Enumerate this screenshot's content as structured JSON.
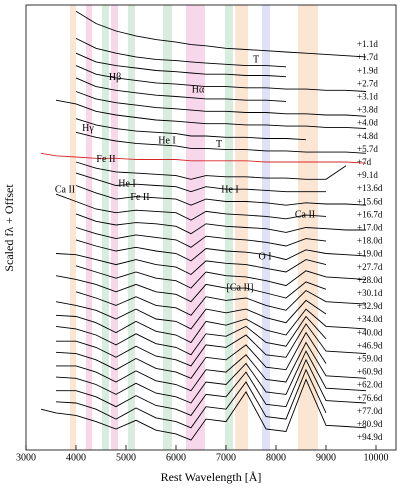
{
  "chart_data": {
    "type": "line",
    "xlabel": "Rest Wavelength [Å]",
    "ylabel": "Scaled fλ + Offset",
    "xlim": [
      3000,
      10400
    ],
    "ylim": [
      -1.5,
      34.5
    ],
    "xticks": [
      3000,
      4000,
      5000,
      6000,
      7000,
      8000,
      9000,
      10000
    ],
    "x": [
      3300,
      3600,
      4000,
      4400,
      4800,
      5200,
      5600,
      6000,
      6300,
      6600,
      7000,
      7400,
      7800,
      8200,
      8600,
      9000,
      9400,
      9800
    ],
    "series": [
      {
        "name": "+1.1d",
        "color": "#000000",
        "values": [
          null,
          null,
          34.0,
          33.0,
          32.4,
          32.0,
          31.7,
          31.5,
          31.3,
          31.2,
          31.0,
          30.9,
          30.8,
          30.7,
          30.6,
          30.5,
          30.4,
          30.3
        ]
      },
      {
        "name": "+1.7d",
        "color": "#000000",
        "values": [
          null,
          null,
          31.8,
          31.0,
          30.6,
          30.3,
          30.1,
          30.0,
          29.9,
          29.8,
          29.7,
          29.6,
          29.6,
          29.5,
          null,
          null,
          null,
          null
        ]
      },
      {
        "name": "+1.9d",
        "color": "#000000",
        "values": [
          null,
          null,
          30.6,
          29.9,
          29.6,
          29.4,
          29.2,
          29.1,
          29.0,
          28.9,
          28.9,
          28.8,
          28.8,
          28.7,
          null,
          null,
          null,
          null
        ]
      },
      {
        "name": "+2.7d",
        "color": "#000000",
        "values": [
          null,
          null,
          29.6,
          28.9,
          28.6,
          28.4,
          28.2,
          28.1,
          28.0,
          27.9,
          27.9,
          27.8,
          27.8,
          27.7,
          27.7,
          27.6,
          27.6,
          27.5
        ]
      },
      {
        "name": "+3.1d",
        "color": "#000000",
        "values": [
          null,
          null,
          28.6,
          27.9,
          27.6,
          27.4,
          27.2,
          27.1,
          27.0,
          26.9,
          26.9,
          26.8,
          26.8,
          26.7,
          null,
          null,
          null,
          null
        ]
      },
      {
        "name": "+3.8d",
        "color": "#000000",
        "values": [
          null,
          null,
          27.5,
          26.9,
          26.6,
          26.4,
          26.2,
          26.1,
          26.0,
          25.9,
          25.9,
          25.8,
          25.8,
          25.7,
          25.7,
          25.6,
          25.6,
          25.5
        ]
      },
      {
        "name": "+4.0d",
        "color": "#000000",
        "values": [
          null,
          26.8,
          26.5,
          25.9,
          25.6,
          25.4,
          25.2,
          25.1,
          25.0,
          24.9,
          24.9,
          24.8,
          24.8,
          24.7,
          24.7,
          24.6,
          24.6,
          24.5
        ]
      },
      {
        "name": "+4.8d",
        "color": "#000000",
        "values": [
          null,
          null,
          25.3,
          24.8,
          24.5,
          24.3,
          24.2,
          24.1,
          23.9,
          23.9,
          23.8,
          23.8,
          23.7,
          23.7,
          23.6,
          null,
          null,
          null
        ]
      },
      {
        "name": "+5.7d",
        "color": "#000000",
        "values": [
          null,
          null,
          24.2,
          23.8,
          23.5,
          23.3,
          23.2,
          23.1,
          22.9,
          22.9,
          22.8,
          22.8,
          22.7,
          22.7,
          22.6,
          22.6,
          22.6,
          22.5
        ]
      },
      {
        "name": "+7d",
        "color": "#d62728",
        "values": [
          22.5,
          22.3,
          22.2,
          22.1,
          22.1,
          22.0,
          22.0,
          22.0,
          21.9,
          21.9,
          21.9,
          21.9,
          21.8,
          21.8,
          21.8,
          21.8,
          21.8,
          21.7
        ]
      },
      {
        "name": "+9.1d",
        "color": "#000000",
        "values": [
          null,
          null,
          21.8,
          21.3,
          21.0,
          20.9,
          20.8,
          20.7,
          20.4,
          20.7,
          20.6,
          20.6,
          20.5,
          20.5,
          20.4,
          20.4,
          21.5,
          null
        ]
      },
      {
        "name": "+13.6d",
        "color": "#000000",
        "values": [
          null,
          null,
          20.9,
          20.4,
          19.9,
          20.0,
          19.9,
          19.8,
          19.4,
          19.8,
          19.6,
          19.6,
          19.5,
          19.4,
          19.4,
          19.4,
          null,
          null
        ]
      },
      {
        "name": "+15.6d",
        "color": "#000000",
        "values": [
          null,
          null,
          19.9,
          19.3,
          18.8,
          19.0,
          18.9,
          18.8,
          18.3,
          18.8,
          18.6,
          18.6,
          18.5,
          18.3,
          18.5,
          18.4,
          18.4,
          18.3
        ]
      },
      {
        "name": "+16.7d",
        "color": "#000000",
        "values": [
          null,
          19.2,
          18.6,
          18.0,
          17.7,
          17.9,
          17.8,
          17.7,
          17.1,
          17.8,
          17.6,
          17.5,
          17.4,
          17.2,
          17.5,
          17.4,
          null,
          null
        ]
      },
      {
        "name": "+17.0d",
        "color": "#000000",
        "values": [
          null,
          null,
          17.6,
          17.0,
          16.7,
          16.9,
          16.8,
          16.6,
          16.0,
          16.8,
          16.6,
          16.5,
          16.4,
          16.1,
          16.5,
          16.4,
          16.3,
          16.3
        ]
      },
      {
        "name": "+18.0d",
        "color": "#000000",
        "values": [
          null,
          null,
          16.5,
          16.0,
          15.6,
          15.9,
          15.7,
          15.5,
          14.9,
          15.8,
          15.6,
          15.5,
          15.3,
          15.0,
          15.6,
          15.4,
          null,
          null
        ]
      },
      {
        "name": "+19.0d",
        "color": "#000000",
        "values": [
          null,
          null,
          15.5,
          15.0,
          14.6,
          14.9,
          14.6,
          14.4,
          13.8,
          14.8,
          14.6,
          14.5,
          14.3,
          13.9,
          14.7,
          14.4,
          14.3,
          14.2
        ]
      },
      {
        "name": "+27.7d",
        "color": "#000000",
        "values": [
          null,
          14.4,
          14.3,
          13.9,
          13.5,
          13.9,
          13.5,
          13.3,
          12.7,
          13.8,
          13.6,
          13.5,
          13.2,
          12.9,
          13.9,
          13.5,
          null,
          null
        ]
      },
      {
        "name": "+28.0d",
        "color": "#000000",
        "values": [
          null,
          null,
          13.4,
          12.9,
          12.4,
          12.9,
          12.4,
          12.2,
          11.6,
          12.9,
          12.6,
          12.5,
          12.2,
          11.8,
          13.0,
          12.5,
          12.4,
          12.3
        ]
      },
      {
        "name": "+30.1d",
        "color": "#000000",
        "values": [
          null,
          12.6,
          12.3,
          11.9,
          11.3,
          11.9,
          11.3,
          11.1,
          10.5,
          11.9,
          11.6,
          11.6,
          11.2,
          10.8,
          12.1,
          11.5,
          null,
          null
        ]
      },
      {
        "name": "+32.9d",
        "color": "#000000",
        "values": [
          null,
          null,
          11.3,
          10.8,
          10.2,
          10.9,
          10.2,
          10.0,
          9.4,
          10.9,
          10.6,
          10.8,
          10.2,
          9.8,
          11.4,
          10.5,
          10.4,
          10.3
        ]
      },
      {
        "name": "+34.0d",
        "color": "#000000",
        "values": [
          null,
          10.5,
          10.2,
          9.8,
          9.1,
          9.9,
          9.1,
          8.9,
          8.3,
          9.9,
          9.6,
          9.9,
          9.2,
          8.8,
          10.6,
          9.5,
          null,
          null
        ]
      },
      {
        "name": "+40.0d",
        "color": "#000000",
        "values": [
          null,
          9.4,
          9.3,
          8.8,
          8.0,
          8.9,
          8.1,
          7.8,
          7.2,
          8.9,
          8.6,
          9.1,
          8.2,
          7.8,
          9.9,
          8.5,
          8.4,
          8.3
        ]
      },
      {
        "name": "+46.9d",
        "color": "#000000",
        "values": [
          null,
          8.5,
          8.3,
          7.8,
          7.0,
          7.9,
          7.1,
          6.8,
          6.2,
          7.9,
          7.7,
          8.5,
          7.2,
          6.9,
          9.3,
          7.5,
          null,
          null
        ]
      },
      {
        "name": "+59.0d",
        "color": "#000000",
        "values": [
          null,
          7.3,
          7.3,
          6.8,
          6.0,
          6.9,
          6.1,
          5.8,
          5.3,
          7.0,
          6.8,
          7.8,
          6.2,
          6.0,
          8.7,
          6.5,
          6.4,
          6.3
        ]
      },
      {
        "name": "+60.9d",
        "color": "#000000",
        "values": [
          null,
          6.4,
          6.3,
          5.8,
          5.0,
          5.9,
          5.1,
          4.8,
          4.3,
          6.0,
          5.8,
          7.0,
          5.2,
          5.0,
          8.0,
          5.5,
          null,
          null
        ]
      },
      {
        "name": "+62.0d",
        "color": "#000000",
        "values": [
          null,
          5.3,
          5.3,
          4.8,
          4.0,
          4.9,
          4.1,
          3.8,
          3.3,
          5.0,
          4.8,
          6.2,
          4.2,
          4.0,
          7.2,
          4.5,
          4.4,
          4.3
        ]
      },
      {
        "name": "+76.6d",
        "color": "#000000",
        "values": [
          null,
          4.4,
          4.3,
          3.8,
          3.0,
          3.9,
          3.1,
          2.8,
          2.3,
          4.0,
          3.8,
          5.5,
          3.2,
          3.0,
          6.5,
          3.5,
          3.4,
          3.3
        ]
      },
      {
        "name": "+77.0d",
        "color": "#000000",
        "values": [
          null,
          3.3,
          3.3,
          2.8,
          2.0,
          2.9,
          2.1,
          1.8,
          1.3,
          3.0,
          2.8,
          4.8,
          2.2,
          2.0,
          5.8,
          2.5,
          2.4,
          2.3
        ]
      },
      {
        "name": "+80.9d",
        "color": "#000000",
        "values": [
          null,
          2.4,
          2.3,
          1.8,
          1.0,
          1.9,
          1.1,
          0.8,
          0.3,
          2.0,
          1.8,
          4.0,
          1.2,
          1.0,
          5.0,
          1.5,
          null,
          null
        ]
      },
      {
        "name": "+94.9d",
        "color": "#000000",
        "values": [
          1.8,
          1.5,
          1.3,
          0.8,
          0.2,
          0.9,
          0.1,
          -0.2,
          -0.7,
          1.0,
          0.8,
          3.2,
          0.2,
          0.0,
          4.2,
          0.5,
          0.4,
          0.3
        ]
      }
    ],
    "regions": [
      {
        "x0": 3880,
        "x1": 4000,
        "color": "#f7d2b0"
      },
      {
        "x0": 4200,
        "x1": 4320,
        "color": "#f4b6d8"
      },
      {
        "x0": 4520,
        "x1": 4660,
        "color": "#b9dfc4"
      },
      {
        "x0": 4700,
        "x1": 4840,
        "color": "#f4b6d8"
      },
      {
        "x0": 5040,
        "x1": 5180,
        "color": "#b9dfc4"
      },
      {
        "x0": 5740,
        "x1": 5920,
        "color": "#b9dfc4"
      },
      {
        "x0": 6200,
        "x1": 6580,
        "color": "#f4b6d8"
      },
      {
        "x0": 6980,
        "x1": 7140,
        "color": "#b9dfc4"
      },
      {
        "x0": 7180,
        "x1": 7440,
        "color": "#f7d2b0"
      },
      {
        "x0": 7720,
        "x1": 7880,
        "color": "#c4c8f2"
      },
      {
        "x0": 8440,
        "x1": 8840,
        "color": "#f7d2b0"
      }
    ],
    "annotations": [
      {
        "text": "T",
        "x": 7600,
        "y": 30.05,
        "color": "#000000"
      },
      {
        "text": "Hβ",
        "x": 4780,
        "y": 28.6,
        "color": "#c0389a"
      },
      {
        "text": "Hα",
        "x": 6440,
        "y": 27.6,
        "color": "#c0389a"
      },
      {
        "text": "Hγ",
        "x": 4240,
        "y": 24.5,
        "color": "#c0389a"
      },
      {
        "text": "He I",
        "x": 5820,
        "y": 23.5,
        "color": "#2f8a3a"
      },
      {
        "text": "T",
        "x": 6860,
        "y": 23.2,
        "color": "#000000"
      },
      {
        "text": "Fe II",
        "x": 4600,
        "y": 22.0,
        "color": "#000000"
      },
      {
        "text": "Ca II",
        "x": 3780,
        "y": 19.5,
        "color": "#c8702a"
      },
      {
        "text": "He I",
        "x": 5020,
        "y": 20.0,
        "color": "#2f8a3a"
      },
      {
        "text": "Fe II",
        "x": 5280,
        "y": 18.9,
        "color": "#2f8a3a"
      },
      {
        "text": "He I",
        "x": 7080,
        "y": 19.5,
        "color": "#2f8a3a"
      },
      {
        "text": "Ca II",
        "x": 8580,
        "y": 17.5,
        "color": "#c8702a"
      },
      {
        "text": "O I",
        "x": 7780,
        "y": 14.1,
        "color": "#2a3acc"
      },
      {
        "text": "[Ca II]",
        "x": 7280,
        "y": 11.6,
        "color": "#c8702a"
      }
    ]
  }
}
